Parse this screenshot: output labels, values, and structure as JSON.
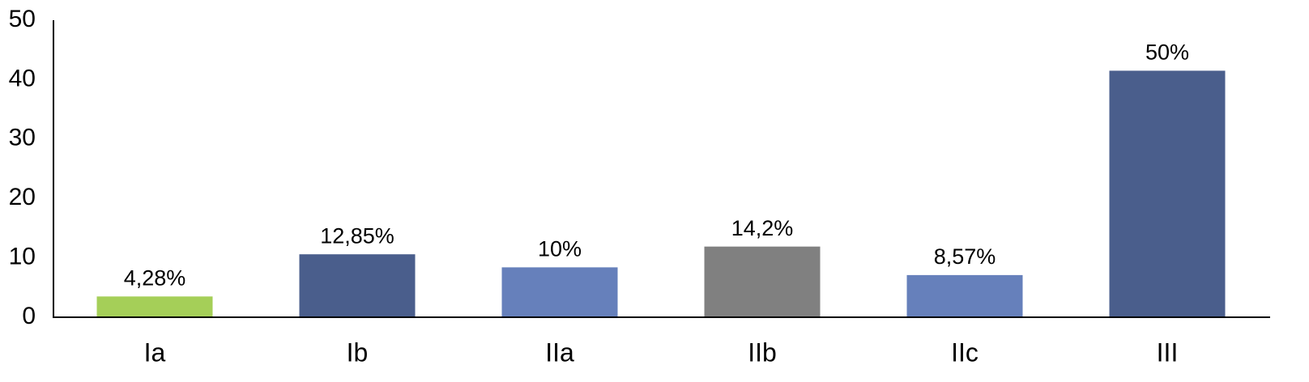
{
  "chart_data": {
    "type": "bar",
    "categories": [
      "Ia",
      "Ib",
      "IIa",
      "IIb",
      "IIc",
      "III"
    ],
    "values": [
      3.5,
      10.6,
      8.4,
      11.9,
      7.1,
      41.5
    ],
    "value_labels": [
      "4,28%",
      "12,85%",
      "10%",
      "14,2%",
      "8,57%",
      "50%"
    ],
    "colors": [
      "#a5cf58",
      "#4a5e8c",
      "#6680bb",
      "#808080",
      "#6680bb",
      "#4a5e8c"
    ],
    "ylim": [
      0,
      50
    ],
    "yticks": [
      0,
      10,
      20,
      30,
      40,
      50
    ],
    "grid": false
  }
}
